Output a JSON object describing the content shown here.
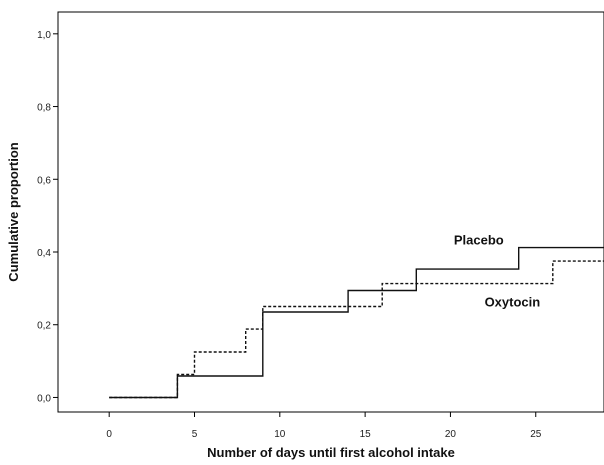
{
  "chart_data": {
    "type": "line",
    "step": true,
    "xlabel": "Number of days until first alcohol intake",
    "ylabel": "Cumulative proportion",
    "xlim": [
      -3,
      29
    ],
    "ylim": [
      -0.04,
      1.06
    ],
    "x_ticks": [
      0,
      5,
      10,
      15,
      20,
      25
    ],
    "y_ticks": [
      0.0,
      0.2,
      0.4,
      0.6,
      0.8,
      1.0
    ],
    "x_tick_labels": [
      "0",
      "5",
      "10",
      "15",
      "20",
      "25"
    ],
    "y_tick_labels": [
      "0,0",
      "0,2",
      "0,4",
      "0,6",
      "0,8",
      "1,0"
    ],
    "grid": false,
    "series": [
      {
        "name": "Placebo",
        "style": "solid",
        "color": "#111111",
        "x": [
          0,
          4,
          4,
          9,
          9,
          14,
          14,
          18,
          18,
          24,
          24,
          29
        ],
        "y": [
          0.0,
          0.0,
          0.059,
          0.059,
          0.235,
          0.235,
          0.294,
          0.294,
          0.353,
          0.353,
          0.412,
          0.412
        ]
      },
      {
        "name": "Oxytocin",
        "style": "dashed",
        "color": "#111111",
        "x": [
          0,
          4,
          4,
          5,
          5,
          8,
          8,
          9,
          9,
          16,
          16,
          26,
          26,
          29
        ],
        "y": [
          0.0,
          0.0,
          0.063,
          0.063,
          0.125,
          0.125,
          0.188,
          0.188,
          0.25,
          0.25,
          0.313,
          0.313,
          0.375,
          0.375
        ]
      }
    ],
    "annotations": [
      {
        "text": "Placebo",
        "x": 20.2,
        "y": 0.42
      },
      {
        "text": "Oxytocin",
        "x": 22.0,
        "y": 0.25
      }
    ]
  }
}
